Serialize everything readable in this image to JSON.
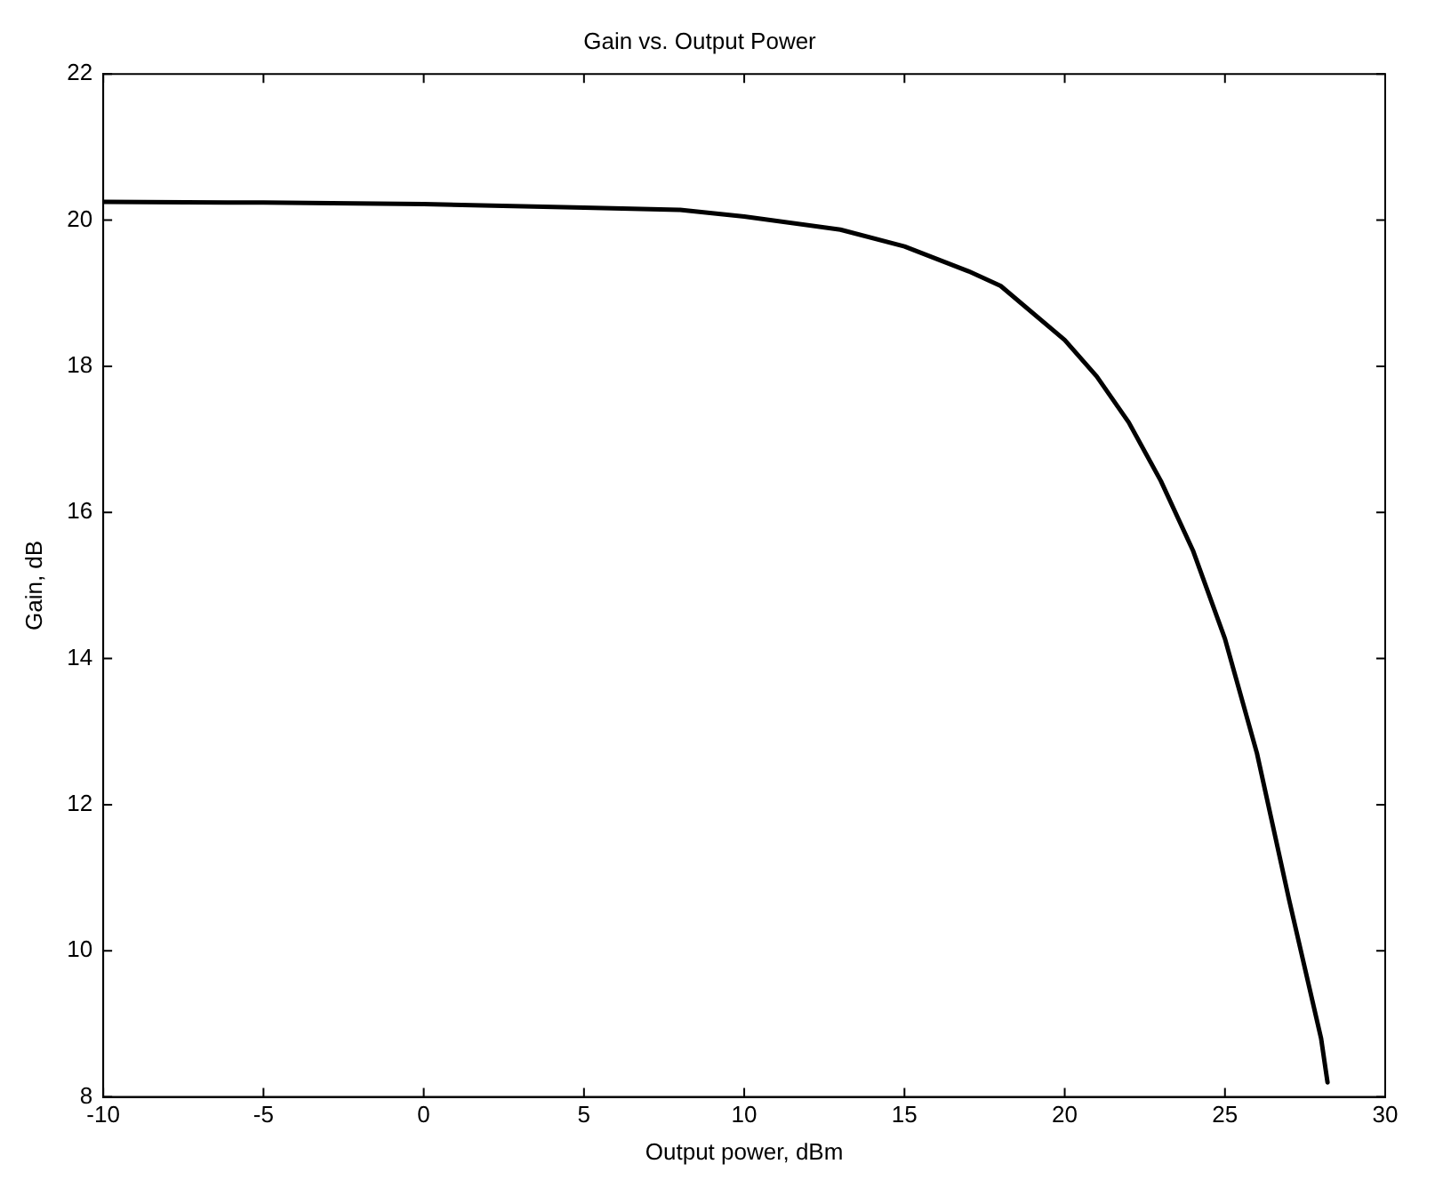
{
  "chart_data": {
    "type": "line",
    "title": "Gain vs. Output Power",
    "xlabel": "Output power, dBm",
    "ylabel": "Gain, dB",
    "x": [
      -10,
      -5,
      0,
      5,
      8,
      10,
      13,
      15,
      17,
      18,
      20,
      21,
      22,
      23,
      24,
      25,
      26,
      26.5,
      27,
      28,
      28.2
    ],
    "series": [
      {
        "color": "#000000",
        "values": [
          20.25,
          20.24,
          20.22,
          20.17,
          20.14,
          20.05,
          19.87,
          19.64,
          19.3,
          19.1,
          18.36,
          17.86,
          17.23,
          16.43,
          15.48,
          14.27,
          12.7,
          11.7,
          10.7,
          8.8,
          8.2
        ]
      }
    ],
    "xlim": [
      -10,
      30
    ],
    "xticks": [
      -10,
      -5,
      0,
      5,
      10,
      15,
      20,
      25,
      30
    ],
    "ylim": [
      8,
      22
    ],
    "yticks": [
      8,
      10,
      12,
      14,
      16,
      18,
      20,
      22
    ],
    "grid": false,
    "legend": false,
    "marker": "none",
    "line_style": "solid"
  }
}
